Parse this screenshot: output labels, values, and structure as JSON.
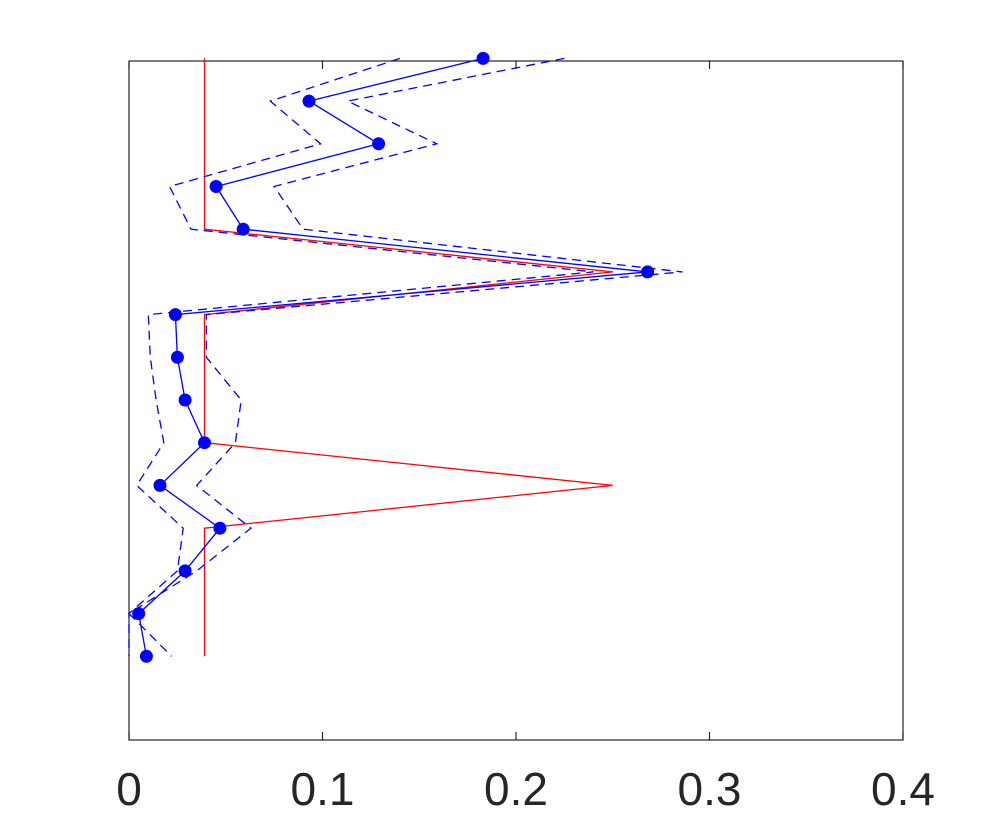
{
  "chart_data": {
    "type": "line",
    "orientation": "horizontal-values",
    "xlim": [
      0,
      0.4
    ],
    "x_ticks": [
      0,
      0.1,
      0.2,
      0.3,
      0.4
    ],
    "x_tick_labels": [
      "0",
      "0.1",
      "0.2",
      "0.3",
      "0.4"
    ],
    "y_axis": "category index (unlabeled), 1 at top to 15 at bottom",
    "ylim": [
      0.0,
      15.9
    ],
    "y_ticks_shown": false,
    "grid": false,
    "legend": "none",
    "series": [
      {
        "style": "solid-markers",
        "color": "#0000ff",
        "marker": "filled-circle",
        "y": [
          1,
          2,
          3,
          4,
          5,
          6,
          7,
          8,
          9,
          10,
          11,
          12,
          13,
          14,
          15
        ],
        "x": [
          0.183,
          0.093,
          0.129,
          0.045,
          0.059,
          0.268,
          0.024,
          0.025,
          0.029,
          0.039,
          0.016,
          0.047,
          0.029,
          0.005,
          0.009
        ]
      },
      {
        "style": "dashed",
        "color": "#0000ff",
        "y": [
          1,
          2,
          3,
          4,
          5,
          6,
          7,
          8,
          9,
          10,
          11,
          12,
          13,
          14,
          15
        ],
        "x": [
          0.225,
          0.113,
          0.159,
          0.075,
          0.09,
          0.286,
          0.04,
          0.04,
          0.058,
          0.055,
          0.035,
          0.063,
          0.035,
          0.0,
          0.022
        ]
      },
      {
        "style": "dashed",
        "color": "#0000ff",
        "y": [
          1,
          2,
          3,
          4,
          5,
          6,
          7,
          8,
          9,
          10,
          11,
          12,
          13,
          14,
          15
        ],
        "x": [
          0.14,
          0.073,
          0.099,
          0.021,
          0.032,
          0.24,
          0.01,
          0.011,
          0.014,
          0.018,
          0.004,
          0.028,
          0.025,
          0.0,
          0.0
        ]
      },
      {
        "style": "solid",
        "color": "#ff0000",
        "y": [
          1,
          2,
          3,
          4,
          5,
          6,
          7,
          8,
          9,
          10,
          11,
          12,
          13,
          14,
          15
        ],
        "x": [
          0.039,
          0.039,
          0.039,
          0.039,
          0.039,
          0.25,
          0.039,
          0.039,
          0.039,
          0.039,
          0.25,
          0.039,
          0.039,
          0.039,
          0.039
        ]
      }
    ]
  }
}
